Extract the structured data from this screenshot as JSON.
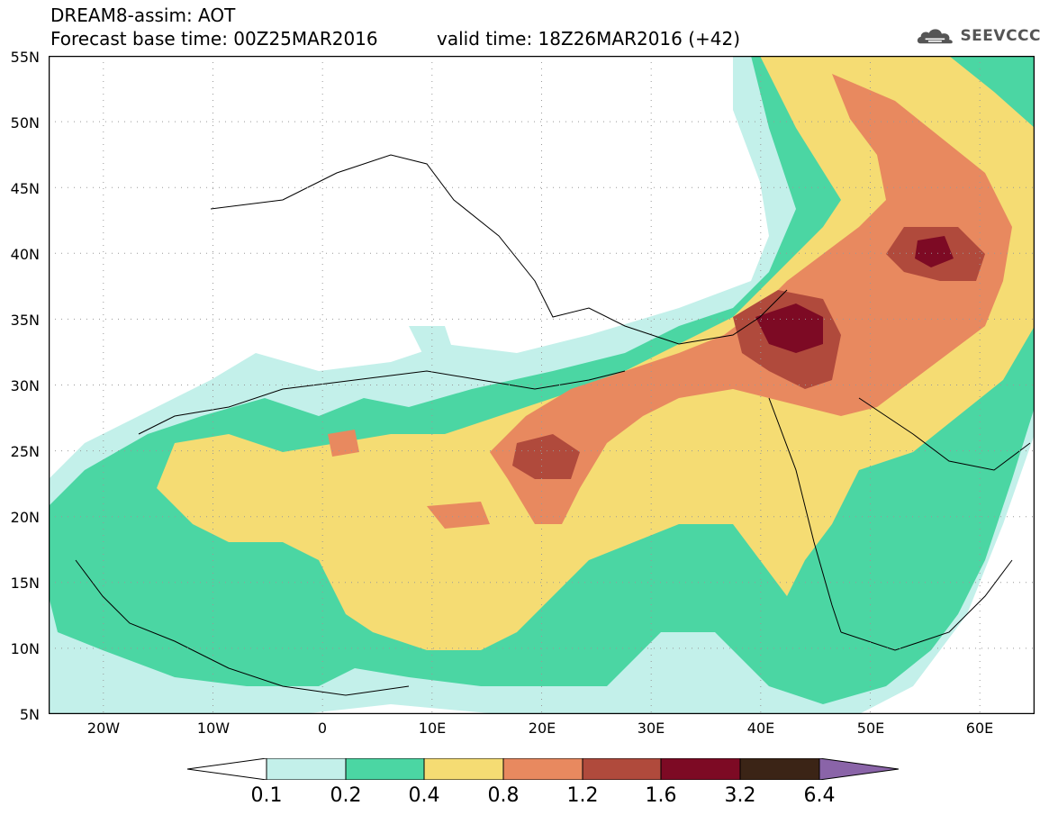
{
  "title": {
    "line1": "DREAM8-assim: AOT",
    "line2": "Forecast base time: 00Z25MAR2016",
    "valid": "valid time: 18Z26MAR2016 (+42)"
  },
  "logo": {
    "text": "SEEVCCC",
    "icon": "cloud-icon"
  },
  "map": {
    "variable": "AOT",
    "lat_ticks": [
      "55N",
      "50N",
      "45N",
      "40N",
      "35N",
      "30N",
      "25N",
      "20N",
      "15N",
      "10N",
      "5N"
    ],
    "lon_ticks": [
      "20W",
      "10W",
      "0",
      "10E",
      "20E",
      "30E",
      "40E",
      "50E",
      "60E"
    ],
    "lat_range": [
      5,
      55
    ],
    "lon_range": [
      -25,
      65
    ],
    "grid": "dotted"
  },
  "colorbar": {
    "labels": [
      "0.1",
      "0.2",
      "0.4",
      "0.8",
      "1.2",
      "1.6",
      "3.2",
      "6.4"
    ],
    "colors": [
      "#ffffff",
      "#c3f0ea",
      "#4bd6a3",
      "#f5dc73",
      "#e8895f",
      "#b04a3c",
      "#7d0a24",
      "#3b2416",
      "#8a64a8"
    ]
  }
}
